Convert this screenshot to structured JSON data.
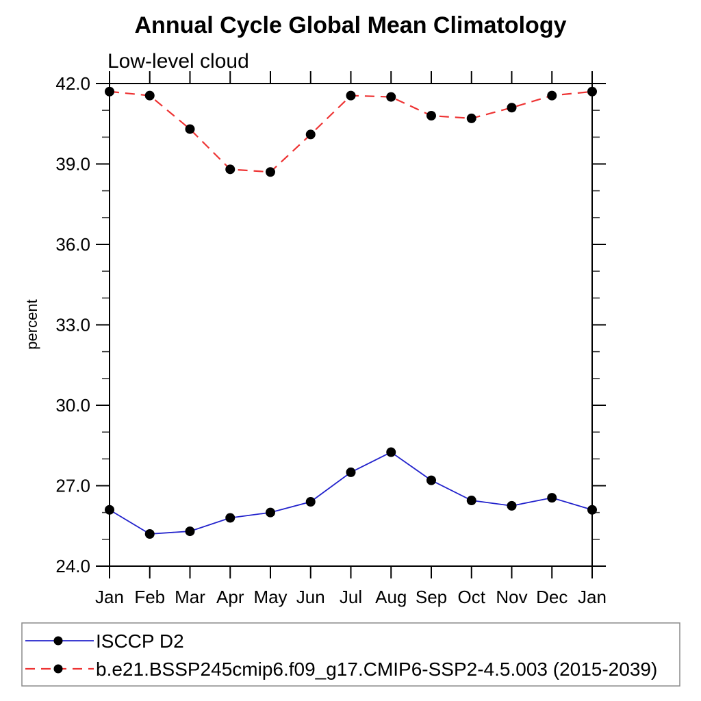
{
  "chart_data": {
    "type": "line",
    "title": "Annual Cycle Global Mean Climatology",
    "subtitle": "Low-level cloud",
    "ylabel": "percent",
    "xlabel": "",
    "x_categories": [
      "Jan",
      "Feb",
      "Mar",
      "Apr",
      "May",
      "Jun",
      "Jul",
      "Aug",
      "Sep",
      "Oct",
      "Nov",
      "Dec",
      "Jan"
    ],
    "ylim": [
      24.0,
      42.0
    ],
    "y_tick_labels": [
      "24.0",
      "27.0",
      "30.0",
      "33.0",
      "36.0",
      "39.0",
      "42.0"
    ],
    "y_minor_step": 1.0,
    "grid": false,
    "legend_position": "bottom-left-box",
    "colors": {
      "axis": "#000000",
      "minor_tick": "#3a3a3a",
      "marker": "#000000",
      "legend_border": "#8a8a8a",
      "isccp_blue": "#2222cc",
      "model_red": "#ee3333"
    },
    "series": [
      {
        "name": "ISCCP D2",
        "color": "#2222cc",
        "style": "solid",
        "marker": "filled-circle",
        "values": [
          26.1,
          25.2,
          25.3,
          25.8,
          26.0,
          26.4,
          27.5,
          28.25,
          27.2,
          26.45,
          26.25,
          26.55,
          26.1
        ]
      },
      {
        "name": "b.e21.BSSP245cmip6.f09_g17.CMIP6-SSP2-4.5.003 (2015-2039)",
        "color": "#ee3333",
        "style": "dashed",
        "marker": "filled-circle",
        "values": [
          41.7,
          41.55,
          40.3,
          38.8,
          38.7,
          40.1,
          41.55,
          41.5,
          40.8,
          40.7,
          41.1,
          41.55,
          41.7
        ]
      }
    ]
  }
}
